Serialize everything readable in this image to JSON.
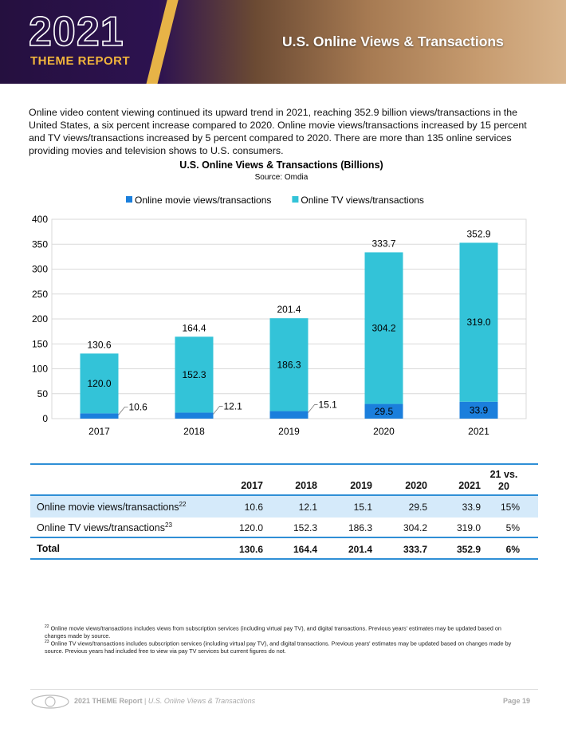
{
  "header": {
    "logo_year": "2021",
    "logo_sub": "THEME REPORT",
    "title": "U.S. Online Views & Transactions"
  },
  "intro": "Online video content viewing continued its upward trend in 2021, reaching 352.9 billion views/transactions in the United States, a six percent increase compared to 2020. Online movie views/transactions increased by 15 percent and TV views/transactions increased by 5 percent compared to 2020. There are more than 135 online services providing movies and television shows to U.S. consumers.",
  "chart_data": {
    "type": "stacked_bar",
    "title": "U.S. Online Views & Transactions (Billions)",
    "subtitle": "Source: Omdia",
    "categories": [
      "2017",
      "2018",
      "2019",
      "2020",
      "2021"
    ],
    "series": [
      {
        "name": "Online movie views/transactions",
        "color": "#1b7fdc",
        "values": [
          10.6,
          12.1,
          15.1,
          29.5,
          33.9
        ]
      },
      {
        "name": "Online TV views/transactions",
        "color": "#33c3d8",
        "values": [
          120.0,
          152.3,
          186.3,
          304.2,
          319.0
        ],
        "value_labels": [
          "120.0",
          "152.3",
          "186.3",
          "304.2",
          "319.0"
        ]
      }
    ],
    "totals": [
      130.6,
      164.4,
      201.4,
      333.7,
      352.9
    ],
    "ylim": [
      0,
      400
    ],
    "yticks": [
      0,
      50,
      100,
      150,
      200,
      250,
      300,
      350,
      400
    ],
    "grid": true,
    "legend": "top"
  },
  "table": {
    "columns": [
      "2017",
      "2018",
      "2019",
      "2020",
      "2021",
      "21 vs. 20"
    ],
    "rows": [
      {
        "label": "Online movie views/transactions",
        "note": "22",
        "cells": [
          "10.6",
          "12.1",
          "15.1",
          "29.5",
          "33.9",
          "15%"
        ]
      },
      {
        "label": "Online TV views/transactions",
        "note": "23",
        "cells": [
          "120.0",
          "152.3",
          "186.3",
          "304.2",
          "319.0",
          "5%"
        ]
      },
      {
        "label": "Total",
        "cells": [
          "130.6",
          "164.4",
          "201.4",
          "333.7",
          "352.9",
          "6%"
        ]
      }
    ]
  },
  "footnotes": [
    {
      "num": "22",
      "text": "Online movie views/transactions includes views from subscription services (including virtual pay TV), and digital transactions. Previous years' estimates may be updated based on changes made by source."
    },
    {
      "num": "23",
      "text": "Online TV views/transactions includes subscription services (including virtual pay TV), and digital transactions. Previous years' estimates may be updated based on changes made by source. Previous years had included free to view via pay TV services but current figures do not."
    }
  ],
  "footer": {
    "report": "2021 THEME Report",
    "sep": "|",
    "section": "U.S. Online Views & Transactions",
    "page": "Page 19"
  }
}
